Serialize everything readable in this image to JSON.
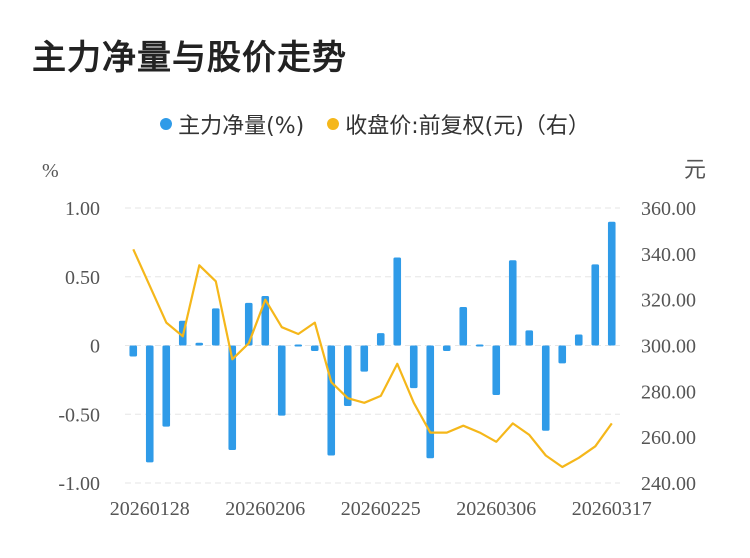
{
  "title": "主力净量与股价走势",
  "colors": {
    "bar": "#2f9be8",
    "line": "#f5b71a",
    "grid": "#e6e6e6",
    "axis_text": "#555555"
  },
  "chart_data": {
    "type": "bar+line",
    "legend": [
      {
        "name": "主力净量(%)",
        "color": "#2f9be8"
      },
      {
        "name": "收盘价:前复权(元)（右）",
        "color": "#f5b71a"
      }
    ],
    "legend_position": "top-center",
    "y_left": {
      "label": "%",
      "range": [
        -1.0,
        1.0
      ],
      "ticks": [
        "1.00",
        "0.50",
        "0",
        "-0.50",
        "-1.00"
      ]
    },
    "y_right": {
      "label": "元",
      "range": [
        240,
        360
      ],
      "ticks": [
        "360.00",
        "340.00",
        "320.00",
        "300.00",
        "280.00",
        "260.00",
        "240.00"
      ]
    },
    "x_tick_labels": [
      "20260128",
      "20260206",
      "20260225",
      "20260306",
      "20260317"
    ],
    "x_tick_indices": [
      1,
      8,
      15,
      22,
      29
    ],
    "grid": true,
    "net_volume_pct": [
      -0.08,
      -0.85,
      -0.59,
      0.18,
      0.02,
      0.27,
      -0.76,
      0.31,
      0.36,
      -0.51,
      0.0,
      -0.04,
      -0.8,
      -0.44,
      -0.19,
      0.09,
      0.64,
      -0.31,
      -0.82,
      -0.04,
      0.28,
      0.01,
      -0.36,
      0.62,
      0.11,
      -0.62,
      -0.13,
      0.08,
      0.59,
      0.9
    ],
    "close_price": [
      342,
      326,
      310,
      304,
      335,
      328,
      294,
      301,
      320,
      308,
      305,
      310,
      284,
      277,
      275,
      278,
      292,
      275,
      262,
      262,
      265,
      262,
      258,
      266,
      261,
      252,
      247,
      251,
      256,
      266
    ]
  }
}
